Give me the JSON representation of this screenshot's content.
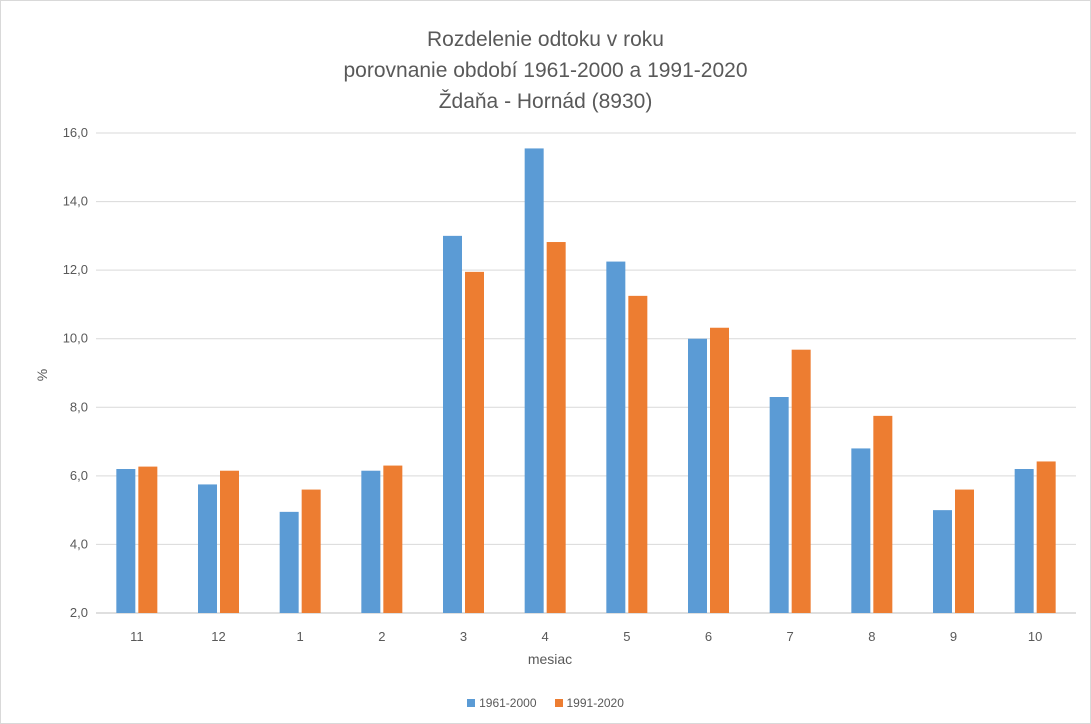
{
  "chart_data": {
    "type": "bar",
    "title_lines": [
      "Rozdelenie odtoku v roku",
      "porovnanie období 1961-2000 a 1991-2020",
      "Ždaňa - Hornád (8930)"
    ],
    "xlabel": "mesiac",
    "ylabel": "%",
    "ylim": [
      2.0,
      16.0
    ],
    "yticks": [
      "2,0",
      "4,0",
      "6,0",
      "8,0",
      "10,0",
      "12,0",
      "14,0",
      "16,0"
    ],
    "grid": true,
    "legend_position": "bottom",
    "categories": [
      "11",
      "12",
      "1",
      "2",
      "3",
      "4",
      "5",
      "6",
      "7",
      "8",
      "9",
      "10"
    ],
    "series": [
      {
        "name": "1961-2000",
        "color": "#5b9bd5",
        "values": [
          6.2,
          5.75,
          4.95,
          6.15,
          13.0,
          15.55,
          12.25,
          10.0,
          8.3,
          6.8,
          5.0,
          6.2
        ]
      },
      {
        "name": "1991-2020",
        "color": "#ed7d31",
        "values": [
          6.27,
          6.15,
          5.6,
          6.3,
          11.95,
          12.82,
          11.25,
          10.32,
          9.68,
          7.75,
          5.6,
          6.42
        ]
      }
    ]
  }
}
